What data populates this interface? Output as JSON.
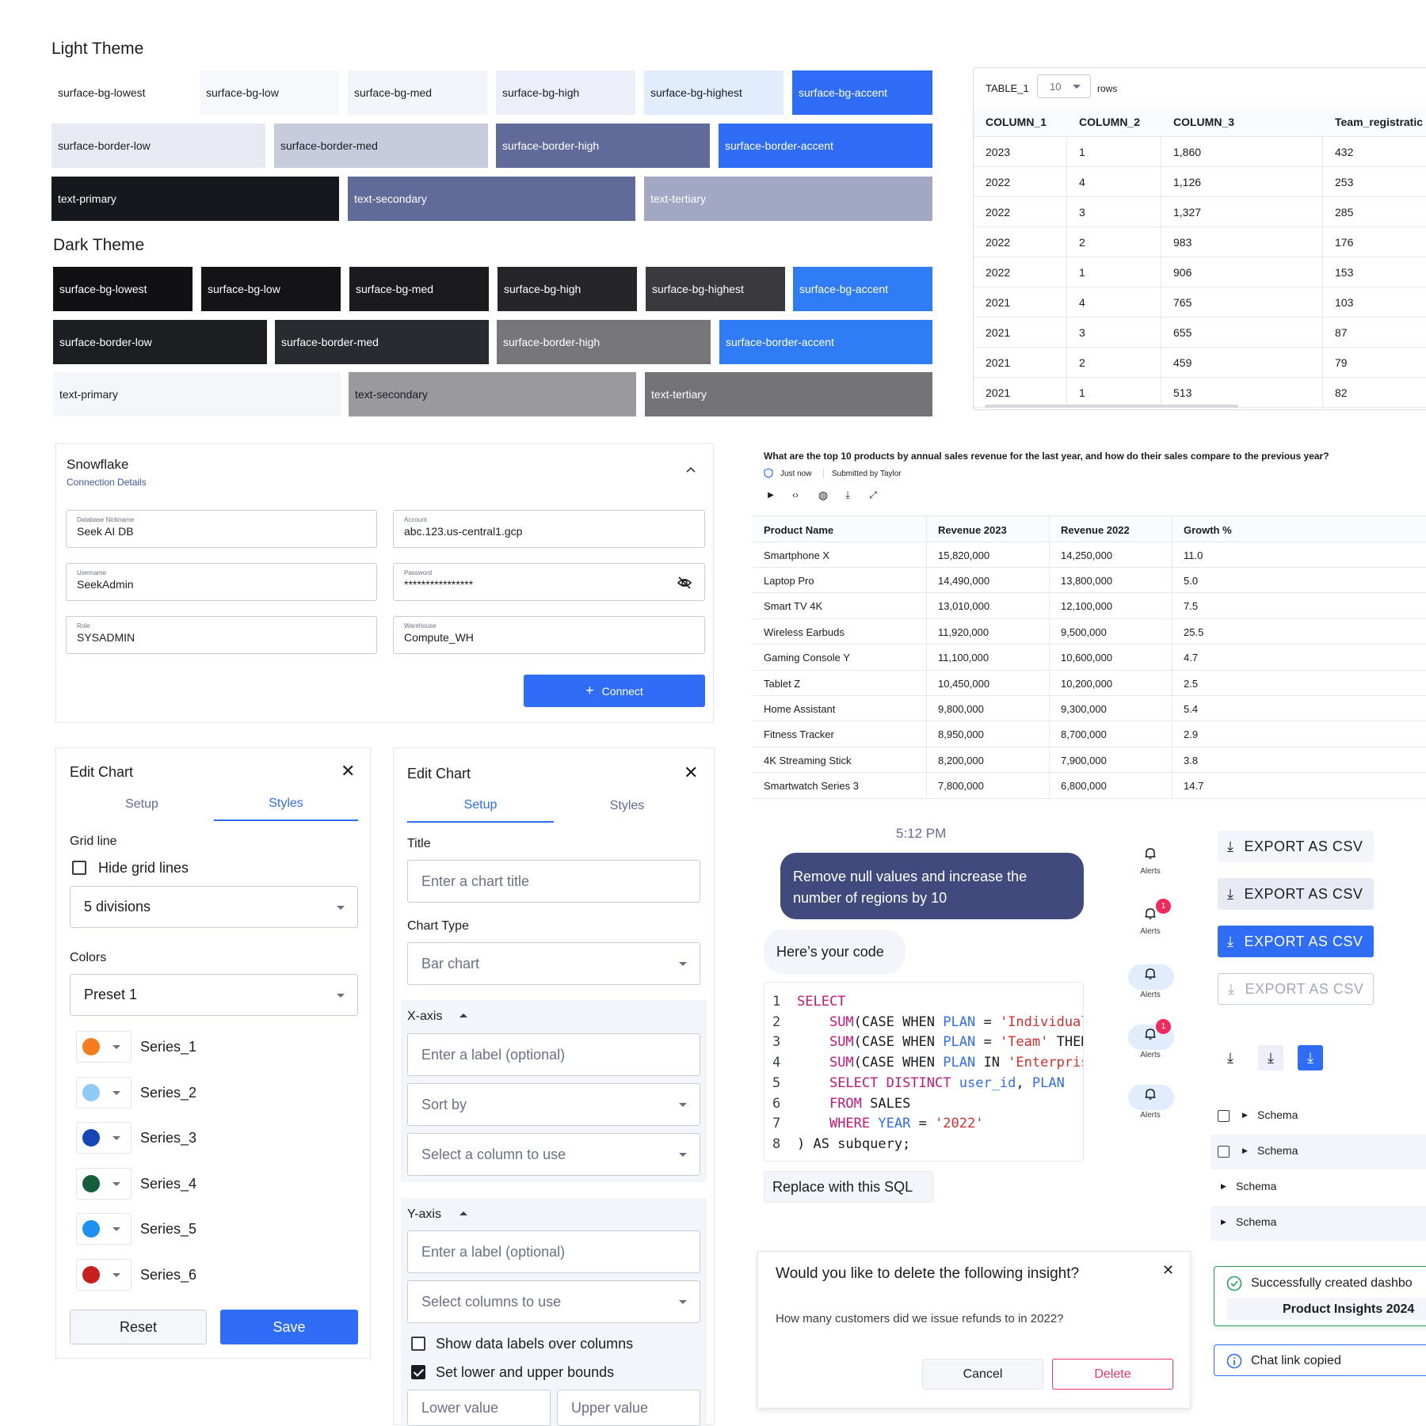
{
  "light_theme": {
    "title": "Light Theme",
    "row1": [
      "surface-bg-lowest",
      "surface-bg-low",
      "surface-bg-med",
      "surface-bg-high",
      "surface-bg-highest",
      "surface-bg-accent"
    ],
    "row2": [
      "surface-border-low",
      "surface-border-med",
      "surface-border-high",
      "surface-border-accent"
    ],
    "row3": [
      "text-primary",
      "text-secondary",
      "text-tertiary"
    ]
  },
  "dark_theme": {
    "title": "Dark Theme",
    "row1": [
      "surface-bg-lowest",
      "surface-bg-low",
      "surface-bg-med",
      "surface-bg-high",
      "surface-bg-highest",
      "surface-bg-accent"
    ],
    "row2": [
      "surface-border-low",
      "surface-border-med",
      "surface-border-high",
      "surface-border-accent"
    ],
    "row3": [
      "text-primary",
      "text-secondary",
      "text-tertiary"
    ]
  },
  "colors": {
    "accent": "#2f6df6",
    "light_text_secondary": "#616b99",
    "dark_text_secondary": "#9a9a9e"
  },
  "table1": {
    "name": "TABLE_1",
    "rows_value": "10",
    "rows_label": "rows",
    "headers": [
      "COLUMN_1",
      "COLUMN_2",
      "COLUMN_3",
      "Team_registratic"
    ],
    "rows": [
      [
        "2023",
        "1",
        "1,860",
        "432"
      ],
      [
        "2022",
        "4",
        "1,126",
        "253"
      ],
      [
        "2022",
        "3",
        "1,327",
        "285"
      ],
      [
        "2022",
        "2",
        "983",
        "176"
      ],
      [
        "2022",
        "1",
        "906",
        "153"
      ],
      [
        "2021",
        "4",
        "765",
        "103"
      ],
      [
        "2021",
        "3",
        "655",
        "87"
      ],
      [
        "2021",
        "2",
        "459",
        "79"
      ],
      [
        "2021",
        "1",
        "513",
        "82"
      ]
    ]
  },
  "snowflake": {
    "title": "Snowflake",
    "subtitle": "Connection Details",
    "fields": [
      {
        "label": "Database Nickname",
        "value": "Seek AI DB"
      },
      {
        "label": "Account",
        "value": "abc.123.us-central1.gcp"
      },
      {
        "label": "Username",
        "value": "SeekAdmin"
      },
      {
        "label": "Password",
        "value": "****************"
      },
      {
        "label": "Role",
        "value": "SYSADMIN"
      },
      {
        "label": "Warehouse",
        "value": "Compute_WH"
      }
    ],
    "connect_label": "Connect"
  },
  "insight": {
    "question": "What are the top 10 products by annual sales revenue for the last year, and how do their sales compare to the previous year?",
    "time": "Just now",
    "submitted": "Submitted by Taylor",
    "headers": [
      "Product Name",
      "Revenue 2023",
      "Revenue 2022",
      "Growth %"
    ],
    "rows": [
      [
        "Smartphone X",
        "15,820,000",
        "14,250,000",
        "11.0"
      ],
      [
        "Laptop Pro",
        "14,490,000",
        "13,800,000",
        "5.0"
      ],
      [
        "Smart TV 4K",
        "13,010,000",
        "12,100,000",
        "7.5"
      ],
      [
        "Wireless Earbuds",
        "11,920,000",
        "9,500,000",
        "25.5"
      ],
      [
        "Gaming Console Y",
        "11,100,000",
        "10,600,000",
        "4.7"
      ],
      [
        "Tablet Z",
        "10,450,000",
        "10,200,000",
        "2.5"
      ],
      [
        "Home Assistant",
        "9,800,000",
        "9,300,000",
        "5.4"
      ],
      [
        "Fitness Tracker",
        "8,950,000",
        "8,700,000",
        "2.9"
      ],
      [
        "4K Streaming Stick",
        "8,200,000",
        "7,900,000",
        "3.8"
      ],
      [
        "Smartwatch Series 3",
        "7,800,000",
        "6,800,000",
        "14.7"
      ]
    ]
  },
  "edit_chart_styles": {
    "title": "Edit Chart",
    "tab_setup": "Setup",
    "tab_styles": "Styles",
    "grid_label": "Grid line",
    "hide_grid": "Hide grid lines",
    "divisions": "5 divisions",
    "colors_label": "Colors",
    "preset": "Preset 1",
    "series": [
      {
        "name": "Series_1",
        "color": "#f57c1f"
      },
      {
        "name": "Series_2",
        "color": "#8ecbf8"
      },
      {
        "name": "Series_3",
        "color": "#1546b5"
      },
      {
        "name": "Series_4",
        "color": "#155e3c"
      },
      {
        "name": "Series_5",
        "color": "#1e90f0"
      },
      {
        "name": "Series_6",
        "color": "#c81e1e"
      }
    ],
    "reset": "Reset",
    "save": "Save"
  },
  "edit_chart_setup": {
    "title": "Edit Chart",
    "tab_setup": "Setup",
    "tab_styles": "Styles",
    "title_label": "Title",
    "title_placeholder": "Enter a chart title",
    "chart_type_label": "Chart Type",
    "chart_type": "Bar chart",
    "xaxis": "X-axis",
    "x_label_placeholder": "Enter a label (optional)",
    "sort_by": "Sort by",
    "select_column": "Select a column to use",
    "yaxis": "Y-axis",
    "y_label_placeholder": "Enter a label (optional)",
    "select_columns": "Select columns to use",
    "show_labels": "Show data labels over columns",
    "set_bounds": "Set lower and upper bounds",
    "lower": "Lower value",
    "upper": "Upper value"
  },
  "chat": {
    "time": "5:12 PM",
    "user_msg": "Remove null values and increase the number of regions by 10",
    "bot_msg": "Here’s your code",
    "replace": "Replace with this SQL",
    "code_lines": [
      "1",
      "2",
      "3",
      "4",
      "5",
      "6",
      "7",
      "8"
    ]
  },
  "alerts": {
    "label": "Alerts",
    "badge": "1"
  },
  "export": {
    "label": "EXPORT AS CSV"
  },
  "schema": {
    "label": "Schema"
  },
  "delete_dialog": {
    "title": "Would you like to delete the following insight?",
    "body": "How many customers did we issue refunds to in 2022?",
    "cancel": "Cancel",
    "delete": "Delete"
  },
  "toasts": {
    "success": "Successfully created dashbo",
    "dashboard": "Product Insights 2024",
    "copied": "Chat link copied"
  }
}
